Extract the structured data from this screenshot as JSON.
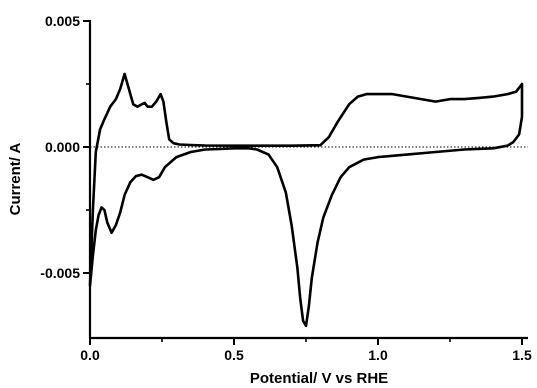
{
  "chart_data": {
    "type": "line",
    "xlabel": "Potential/ V vs RHE",
    "ylabel": "Current/ A",
    "xlim": [
      0,
      1.52
    ],
    "ylim": [
      -0.0075,
      0.005
    ],
    "x_ticks": [
      0.0,
      0.5,
      1.0,
      1.5
    ],
    "x_tick_labels": [
      "0.0",
      "0.5",
      "1.0",
      "1.5"
    ],
    "y_ticks": [
      0.005,
      0.0,
      -0.005
    ],
    "y_tick_labels": [
      "0.005",
      "0.000",
      "-0.005"
    ],
    "zero_line": true,
    "grid": false,
    "legend": "none",
    "series": [
      {
        "line_color": "#000000",
        "x": [
          0.0,
          0.01,
          0.02,
          0.035,
          0.05,
          0.07,
          0.09,
          0.105,
          0.12,
          0.135,
          0.15,
          0.165,
          0.18,
          0.19,
          0.2,
          0.215,
          0.23,
          0.245,
          0.255,
          0.265,
          0.275,
          0.29,
          0.31,
          0.35,
          0.4,
          0.5,
          0.6,
          0.7,
          0.8,
          0.83,
          0.86,
          0.9,
          0.93,
          0.96,
          1.0,
          1.05,
          1.1,
          1.15,
          1.2,
          1.25,
          1.3,
          1.35,
          1.4,
          1.45,
          1.48,
          1.5,
          1.5,
          1.49,
          1.47,
          1.45,
          1.4,
          1.3,
          1.2,
          1.1,
          1.0,
          0.95,
          0.9,
          0.87,
          0.84,
          0.81,
          0.79,
          0.77,
          0.76,
          0.75,
          0.74,
          0.73,
          0.72,
          0.7,
          0.68,
          0.65,
          0.62,
          0.58,
          0.55,
          0.5,
          0.45,
          0.4,
          0.35,
          0.3,
          0.28,
          0.26,
          0.25,
          0.24,
          0.22,
          0.2,
          0.18,
          0.16,
          0.14,
          0.12,
          0.105,
          0.09,
          0.075,
          0.06,
          0.05,
          0.04,
          0.03,
          0.02,
          0.01,
          0.0
        ],
        "y": [
          -0.0055,
          -0.0025,
          -0.0002,
          0.0007,
          0.0011,
          0.0016,
          0.0019,
          0.0023,
          0.0029,
          0.0023,
          0.0017,
          0.0016,
          0.0017,
          0.00175,
          0.0016,
          0.0016,
          0.0018,
          0.0021,
          0.0018,
          0.001,
          0.0003,
          0.00015,
          0.0001,
          8e-05,
          6e-05,
          5e-05,
          5e-05,
          5e-05,
          7e-05,
          0.0004,
          0.001,
          0.0017,
          0.002,
          0.0021,
          0.0021,
          0.0021,
          0.002,
          0.0019,
          0.0018,
          0.0019,
          0.0019,
          0.00195,
          0.002,
          0.0021,
          0.0022,
          0.0025,
          0.0012,
          0.0005,
          0.0002,
          5e-05,
          -5e-05,
          -0.0001,
          -0.0002,
          -0.0003,
          -0.0004,
          -0.0005,
          -0.0008,
          -0.0012,
          -0.0019,
          -0.0028,
          -0.0038,
          -0.0052,
          -0.0063,
          -0.0071,
          -0.0069,
          -0.006,
          -0.0048,
          -0.0031,
          -0.0018,
          -0.0008,
          -0.0003,
          -0.0001,
          -5e-05,
          -5e-05,
          -8e-05,
          -0.0001,
          -0.0002,
          -0.0004,
          -0.0006,
          -0.0008,
          -0.001,
          -0.0012,
          -0.0013,
          -0.0012,
          -0.0011,
          -0.00115,
          -0.0014,
          -0.0019,
          -0.0026,
          -0.0031,
          -0.0034,
          -0.003,
          -0.0025,
          -0.0024,
          -0.0027,
          -0.0033,
          -0.0043,
          -0.0055
        ]
      }
    ]
  }
}
